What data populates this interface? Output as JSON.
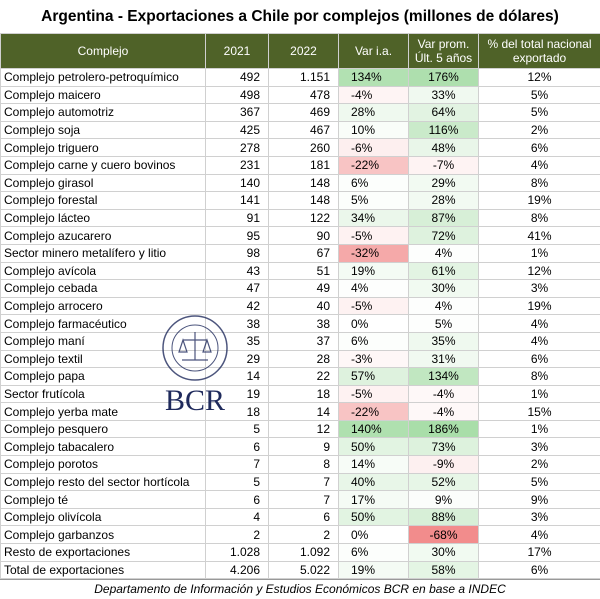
{
  "title": "Argentina - Exportaciones a Chile por complejos (millones de dólares)",
  "table": {
    "header": [
      "Complejo",
      "2021",
      "2022",
      "Var i.a.",
      "Var prom.\nÚlt. 5 años",
      "% del total nacional exportado"
    ],
    "rows": [
      [
        "Complejo petrolero-petroquímico",
        "492",
        "1.151",
        "134%",
        "176%",
        "12%"
      ],
      [
        "Complejo maicero",
        "498",
        "478",
        "-4%",
        "33%",
        "5%"
      ],
      [
        "Complejo automotriz",
        "367",
        "469",
        "28%",
        "64%",
        "5%"
      ],
      [
        "Complejo soja",
        "425",
        "467",
        "10%",
        "116%",
        "2%"
      ],
      [
        "Complejo triguero",
        "278",
        "260",
        "-6%",
        "48%",
        "6%"
      ],
      [
        "Complejo carne y cuero bovinos",
        "231",
        "181",
        "-22%",
        "-7%",
        "4%"
      ],
      [
        "Complejo girasol",
        "140",
        "148",
        "6%",
        "29%",
        "8%"
      ],
      [
        "Complejo forestal",
        "141",
        "148",
        "5%",
        "28%",
        "19%"
      ],
      [
        "Complejo lácteo",
        "91",
        "122",
        "34%",
        "87%",
        "8%"
      ],
      [
        "Complejo azucarero",
        "95",
        "90",
        "-5%",
        "72%",
        "41%"
      ],
      [
        "Sector minero metalífero y litio",
        "98",
        "67",
        "-32%",
        "4%",
        "1%"
      ],
      [
        "Complejo avícola",
        "43",
        "51",
        "19%",
        "61%",
        "12%"
      ],
      [
        "Complejo cebada",
        "47",
        "49",
        "4%",
        "30%",
        "3%"
      ],
      [
        "Complejo arrocero",
        "42",
        "40",
        "-5%",
        "4%",
        "19%"
      ],
      [
        "Complejo farmacéutico",
        "38",
        "38",
        "0%",
        "5%",
        "4%"
      ],
      [
        "Complejo maní",
        "35",
        "37",
        "6%",
        "35%",
        "4%"
      ],
      [
        "Complejo textil",
        "29",
        "28",
        "-3%",
        "31%",
        "6%"
      ],
      [
        "Complejo papa",
        "14",
        "22",
        "57%",
        "134%",
        "8%"
      ],
      [
        "Sector frutícola",
        "19",
        "18",
        "-5%",
        "-4%",
        "1%"
      ],
      [
        "Complejo yerba mate",
        "18",
        "14",
        "-22%",
        "-4%",
        "15%"
      ],
      [
        "Complejo pesquero",
        "5",
        "12",
        "140%",
        "186%",
        "1%"
      ],
      [
        "Complejo tabacalero",
        "6",
        "9",
        "50%",
        "73%",
        "3%"
      ],
      [
        "Complejo porotos",
        "7",
        "8",
        "14%",
        "-9%",
        "2%"
      ],
      [
        "Complejo resto del sector hortícola",
        "5",
        "7",
        "40%",
        "52%",
        "5%"
      ],
      [
        "Complejo té",
        "6",
        "7",
        "17%",
        "9%",
        "9%"
      ],
      [
        "Complejo olivícola",
        "4",
        "6",
        "50%",
        "88%",
        "3%"
      ],
      [
        "Complejo garbanzos",
        "2",
        "2",
        "0%",
        "-68%",
        "4%"
      ],
      [
        "Resto de exportaciones",
        "1.028",
        "1.092",
        "6%",
        "30%",
        "17%"
      ],
      [
        "Total de exportaciones",
        "4.206",
        "5.022",
        "19%",
        "58%",
        "6%"
      ]
    ]
  },
  "logo": {
    "text": "BCR"
  },
  "footer": "Departamento de Información y Estudios Económicos BCR en base a INDEC"
}
